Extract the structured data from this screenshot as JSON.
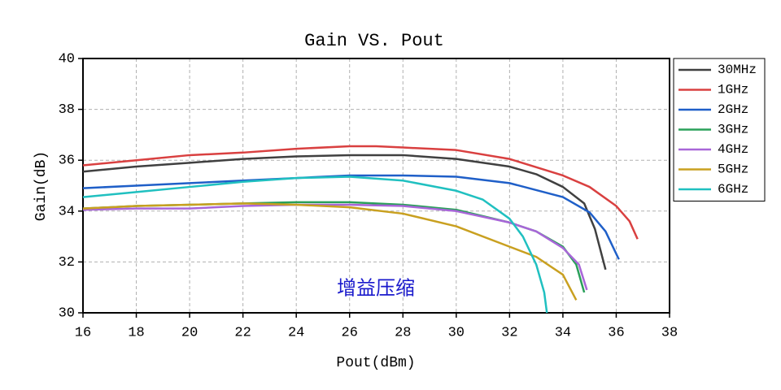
{
  "chart_data": {
    "type": "line",
    "title": "Gain VS. Pout",
    "x_label": "Pout(dBm)",
    "y_label": "Gain(dB)",
    "annotation": "增益压缩",
    "annotation_color": "#1a1acc",
    "xlim": [
      16,
      38
    ],
    "ylim": [
      30,
      40
    ],
    "xticks": [
      16,
      18,
      20,
      22,
      24,
      26,
      28,
      30,
      32,
      34,
      36,
      38
    ],
    "yticks": [
      30,
      32,
      34,
      36,
      38,
      40
    ],
    "grid": true,
    "legend": "right",
    "series": [
      {
        "name": "30MHz",
        "color": "#404040",
        "x": [
          16,
          18,
          20,
          22,
          24,
          26,
          28,
          30,
          32,
          33,
          34,
          34.8,
          35.2,
          35.6
        ],
        "values": [
          35.55,
          35.75,
          35.9,
          36.05,
          36.15,
          36.2,
          36.2,
          36.05,
          35.75,
          35.45,
          34.95,
          34.3,
          33.3,
          31.7
        ]
      },
      {
        "name": "1GHz",
        "color": "#d94040",
        "x": [
          16,
          18,
          20,
          22,
          24,
          26,
          27,
          28,
          30,
          32,
          34,
          35,
          36,
          36.5,
          36.8
        ],
        "values": [
          35.8,
          36.0,
          36.2,
          36.3,
          36.45,
          36.55,
          36.55,
          36.5,
          36.4,
          36.05,
          35.4,
          34.95,
          34.2,
          33.6,
          32.9
        ]
      },
      {
        "name": "2GHz",
        "color": "#1f5fc8",
        "x": [
          16,
          18,
          20,
          22,
          24,
          26,
          28,
          30,
          32,
          34,
          35,
          35.6,
          36.1
        ],
        "values": [
          34.9,
          35.0,
          35.1,
          35.2,
          35.3,
          35.4,
          35.4,
          35.35,
          35.1,
          34.55,
          33.95,
          33.2,
          32.1
        ]
      },
      {
        "name": "3GHz",
        "color": "#2aa05a",
        "x": [
          16,
          18,
          20,
          22,
          24,
          26,
          28,
          30,
          32,
          33,
          34,
          34.5,
          34.8
        ],
        "values": [
          34.1,
          34.2,
          34.25,
          34.3,
          34.35,
          34.35,
          34.25,
          34.05,
          33.55,
          33.2,
          32.6,
          31.9,
          30.8
        ]
      },
      {
        "name": "4GHz",
        "color": "#a866d8",
        "x": [
          16,
          18,
          20,
          22,
          24,
          26,
          28,
          30,
          32,
          33,
          34,
          34.6,
          34.9
        ],
        "values": [
          34.05,
          34.1,
          34.1,
          34.2,
          34.25,
          34.25,
          34.2,
          34.0,
          33.55,
          33.2,
          32.55,
          31.9,
          30.9
        ]
      },
      {
        "name": "5GHz",
        "color": "#c9a020",
        "x": [
          16,
          18,
          20,
          22,
          24,
          26,
          28,
          30,
          32,
          33,
          34,
          34.5
        ],
        "values": [
          34.1,
          34.2,
          34.25,
          34.3,
          34.25,
          34.15,
          33.9,
          33.4,
          32.6,
          32.2,
          31.5,
          30.5
        ]
      },
      {
        "name": "6GHz",
        "color": "#20c0c0",
        "x": [
          16,
          18,
          20,
          22,
          24,
          26,
          28,
          30,
          31,
          32,
          32.5,
          33,
          33.3,
          33.4
        ],
        "values": [
          34.55,
          34.75,
          34.95,
          35.15,
          35.3,
          35.35,
          35.2,
          34.8,
          34.45,
          33.7,
          33.0,
          31.9,
          30.8,
          30.0
        ]
      }
    ]
  }
}
